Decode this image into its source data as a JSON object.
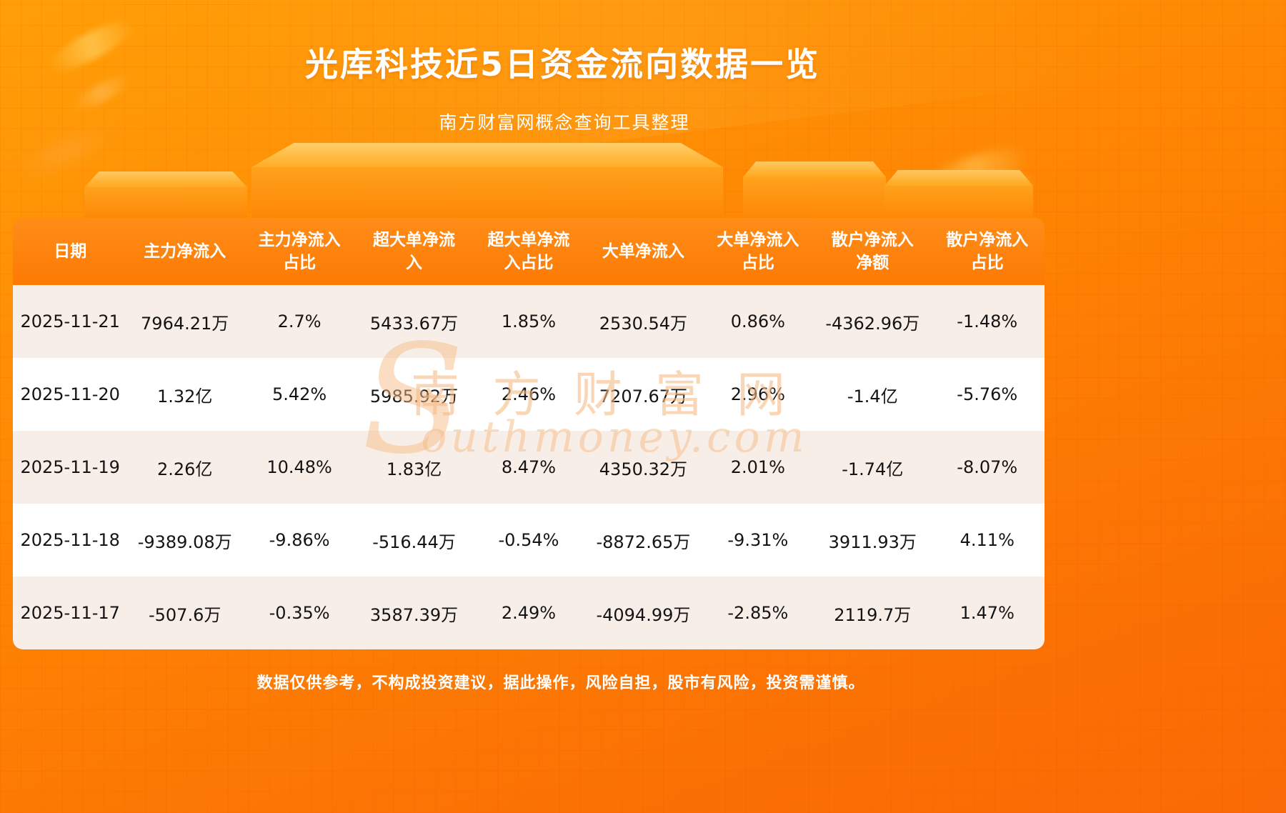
{
  "page": {
    "title": "光库科技近5日资金流向数据一览",
    "subtitle": "南方财富网概念查询工具整理",
    "disclaimer": "数据仅供参考，不构成投资建议，据此操作，风险自担，股市有风险，投资需谨慎。",
    "watermark": {
      "initial": "S",
      "cn": "南方财富网",
      "en": "outhmoney.com"
    }
  },
  "colors": {
    "background_orange_top": "#ff9f07",
    "background_orange_bottom": "#fa6a06",
    "header_orange": "#fc7a04",
    "row_alt_pink": "#f8eee8",
    "row_white": "#ffffff",
    "text_dark": "#141414",
    "text_white": "#ffffff",
    "watermark_tan": "#f5bb86",
    "podium_orange": "#ffa11c"
  },
  "chart_data": {
    "type": "table",
    "title": "光库科技近5日资金流向数据一览",
    "columns": [
      "日期",
      "主力净流入",
      "主力净流入占比",
      "超大单净流入",
      "超大单净流入占比",
      "大单净流入",
      "大单净流入占比",
      "散户净流入净额",
      "散户净流入占比"
    ],
    "rows": [
      [
        "2025-11-21",
        "7964.21万",
        "2.7%",
        "5433.67万",
        "1.85%",
        "2530.54万",
        "0.86%",
        "-4362.96万",
        "-1.48%"
      ],
      [
        "2025-11-20",
        "1.32亿",
        "5.42%",
        "5985.92万",
        "2.46%",
        "7207.67万",
        "2.96%",
        "-1.4亿",
        "-5.76%"
      ],
      [
        "2025-11-19",
        "2.26亿",
        "10.48%",
        "1.83亿",
        "8.47%",
        "4350.32万",
        "2.01%",
        "-1.74亿",
        "-8.07%"
      ],
      [
        "2025-11-18",
        "-9389.08万",
        "-9.86%",
        "-516.44万",
        "-0.54%",
        "-8872.65万",
        "-9.31%",
        "3911.93万",
        "4.11%"
      ],
      [
        "2025-11-17",
        "-507.6万",
        "-0.35%",
        "3587.39万",
        "2.49%",
        "-4094.99万",
        "-2.85%",
        "2119.7万",
        "1.47%"
      ]
    ]
  }
}
